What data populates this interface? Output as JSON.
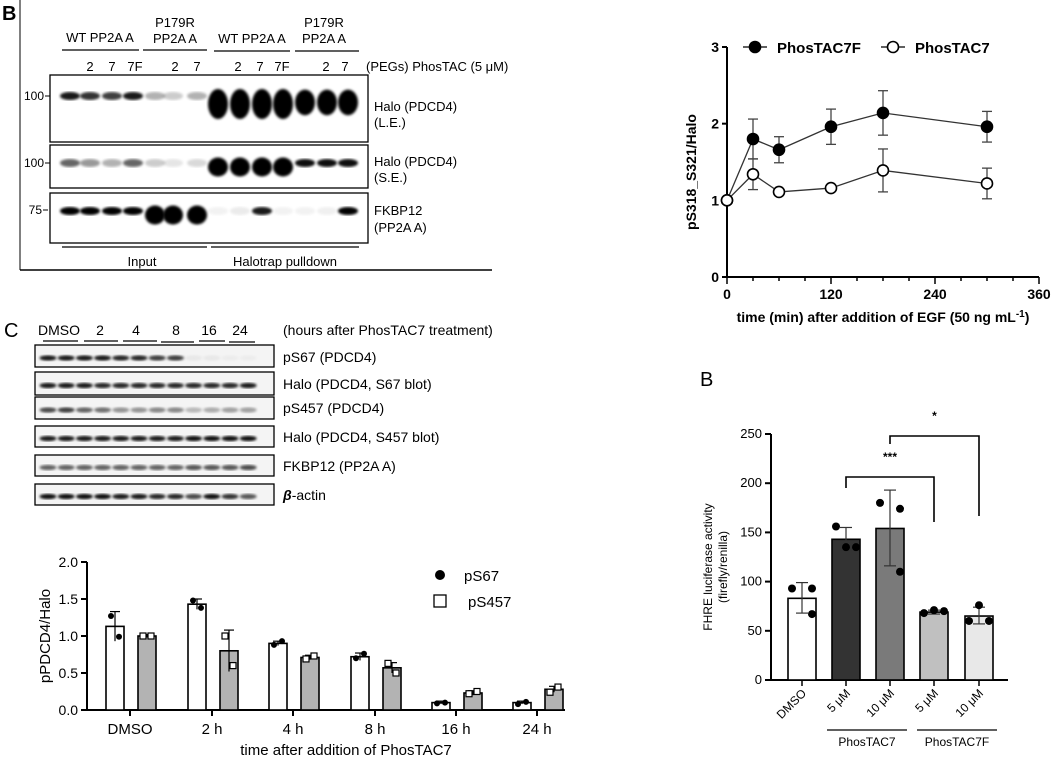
{
  "panel_b_blot": {
    "panel_label": "B",
    "groups": [
      "WT PP2A A",
      "P179R",
      "PP2A A",
      "WT PP2A A",
      "P179R",
      "PP2A A"
    ],
    "lanes": [
      "2",
      "7",
      "7F",
      "2",
      "7",
      "2",
      "7",
      "7F",
      "2",
      "7"
    ],
    "lane_header": "(PEGs) PhosTAC (5 μM)",
    "mw_markers": [
      "100",
      "100",
      "75"
    ],
    "blot_labels": [
      "Halo (PDCD4)",
      "(L.E.)",
      "Halo (PDCD4)",
      "(S.E.)",
      "FKBP12",
      "(PP2A A)"
    ],
    "sections": [
      "Input",
      "Halotrap pulldown"
    ]
  },
  "panel_c_blot": {
    "panel_label": "C",
    "timepoints": [
      "DMSO",
      "2",
      "4",
      "8",
      "16",
      "24"
    ],
    "header": "(hours after PhosTAC7 treatment)",
    "blot_labels": [
      "pS67 (PDCD4)",
      "Halo (PDCD4, S67 blot)",
      "pS457 (PDCD4)",
      "Halo (PDCD4, S457 blot)",
      "FKBP12 (PP2A A)"
    ],
    "actin_beta": "β",
    "actin_rest": "-actin"
  },
  "chart_data": [
    {
      "type": "line",
      "title": "",
      "xlabel": "time (min) after addition of EGF (50 ng mL",
      "xlabel_sup": "-1",
      "xlabel_end": ")",
      "ylabel": "pS318_S321/Halo",
      "xlim": [
        0,
        360
      ],
      "ylim": [
        0,
        3
      ],
      "xticks": [
        "0",
        "120",
        "240",
        "360"
      ],
      "yticks": [
        "0",
        "1",
        "2",
        "3"
      ],
      "legend": "top",
      "x": [
        0,
        30,
        60,
        120,
        180,
        300
      ],
      "series": [
        {
          "name": "PhosTAC7F",
          "marker": "filled-circle",
          "values": [
            1.0,
            1.8,
            1.66,
            1.96,
            2.14,
            1.96
          ],
          "error": [
            0,
            0.26,
            0.17,
            0.23,
            0.29,
            0.2
          ]
        },
        {
          "name": "PhosTAC7",
          "marker": "open-circle",
          "values": [
            1.0,
            1.34,
            1.11,
            1.16,
            1.39,
            1.22
          ],
          "error": [
            0,
            0.2,
            0.03,
            0.03,
            0.28,
            0.2
          ]
        }
      ]
    },
    {
      "type": "bar",
      "xlabel": "time after addition of PhosTAC7",
      "ylabel": "pPDCD4/Halo",
      "ylim": [
        0,
        2.0
      ],
      "yticks": [
        "0.0",
        "0.5",
        "1.0",
        "1.5",
        "2.0"
      ],
      "categories": [
        "DMSO",
        "2 h",
        "4 h",
        "8 h",
        "16 h",
        "24 h"
      ],
      "legend": "top-right",
      "series": [
        {
          "name": "pS67",
          "marker": "filled-circle",
          "color": "#ffffff",
          "values": [
            1.13,
            1.43,
            0.9,
            0.72,
            0.1,
            0.1
          ],
          "error": [
            0.2,
            0.07,
            0.03,
            0.05,
            0.02,
            0.02
          ],
          "points": [
            [
              1.27,
              0.99
            ],
            [
              1.48,
              1.38
            ],
            [
              0.88,
              0.93
            ],
            [
              0.7,
              0.76
            ],
            [
              0.09,
              0.1
            ],
            [
              0.08,
              0.11
            ]
          ]
        },
        {
          "name": "pS457",
          "marker": "open-square",
          "color": "#b3b3b3",
          "values": [
            1.0,
            0.8,
            0.71,
            0.57,
            0.23,
            0.28
          ],
          "error": [
            0.02,
            0.28,
            0.03,
            0.07,
            0.03,
            0.04
          ],
          "points": [
            [
              1.0,
              1.0
            ],
            [
              1.0,
              0.6
            ],
            [
              0.69,
              0.73
            ],
            [
              0.63,
              0.5
            ],
            [
              0.22,
              0.25
            ],
            [
              0.24,
              0.31
            ]
          ]
        }
      ]
    },
    {
      "type": "bar",
      "panel_label": "B",
      "ylabel": "FHRE luciferase activity",
      "ylabel2": "(firefly/renilla)",
      "ylim": [
        0,
        250
      ],
      "yticks": [
        "0",
        "50",
        "100",
        "150",
        "200",
        "250"
      ],
      "categories": [
        "DMSO",
        "5 μM",
        "10 μM",
        "5 μM",
        "10 μM"
      ],
      "groups": [
        "PhosTAC7",
        "PhosTAC7F"
      ],
      "colors": [
        "#ffffff",
        "#333333",
        "#7a7a7a",
        "#c0c0c0",
        "#e8e8e8"
      ],
      "values": [
        83,
        143,
        154,
        69,
        65
      ],
      "error_low": [
        68,
        132,
        116,
        67,
        57
      ],
      "error_high": [
        99,
        155,
        193,
        71,
        74
      ],
      "points": [
        [
          93,
          93,
          67
        ],
        [
          156,
          135,
          135
        ],
        [
          180,
          174,
          110
        ],
        [
          68,
          71,
          70
        ],
        [
          60,
          76,
          60
        ]
      ],
      "significance": [
        {
          "from": 1,
          "to": 3,
          "label": "***"
        },
        {
          "from": 2,
          "to": 4,
          "label": "*"
        }
      ]
    }
  ]
}
